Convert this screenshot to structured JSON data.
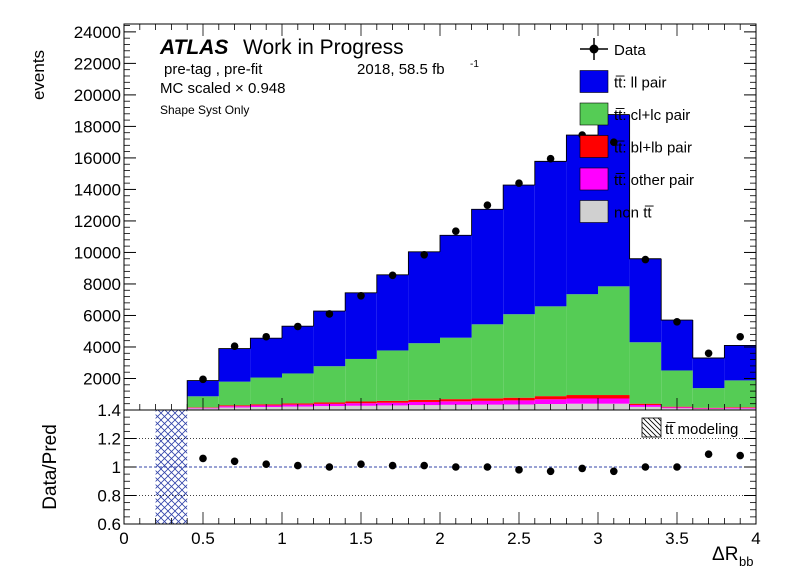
{
  "atlas": {
    "label": "ATLAS",
    "status": "Work in Progress",
    "selection": "pre-tag ,  pre-fit",
    "lumi": "2018, 58.5 fb",
    "lumi_sup": "-1",
    "mc_scale": "MC scaled × 0.948",
    "syst_note": "Shape Syst Only"
  },
  "chart_data": [
    {
      "type": "bar",
      "stacked": true,
      "ylabel": "events",
      "xlim": [
        0,
        4
      ],
      "ylim": [
        0,
        24500
      ],
      "yticks": [
        2000,
        4000,
        6000,
        8000,
        10000,
        12000,
        14000,
        16000,
        18000,
        20000,
        22000,
        24000
      ],
      "bin_edges": [
        0.0,
        0.2,
        0.4,
        0.6,
        0.8,
        1.0,
        1.2,
        1.4,
        1.6,
        1.8,
        2.0,
        2.2,
        2.4,
        2.6,
        2.8,
        3.0,
        3.2,
        3.4,
        3.6,
        3.8,
        4.0
      ],
      "series": [
        {
          "name": "non t̅t̅",
          "label": "non tt",
          "color": "#d0d0d0",
          "values": [
            0,
            0,
            100,
            160,
            190,
            220,
            250,
            270,
            290,
            310,
            330,
            340,
            350,
            380,
            400,
            400,
            200,
            110,
            70,
            90
          ]
        },
        {
          "name": "tt̅: other pair",
          "label": "tt: other pair",
          "color": "#ff00ff",
          "values": [
            0,
            0,
            40,
            80,
            100,
            120,
            140,
            160,
            170,
            200,
            220,
            240,
            260,
            300,
            330,
            330,
            120,
            60,
            40,
            50
          ]
        },
        {
          "name": "tt̅: bl+lb pair",
          "label": "tt: bl+lb pair",
          "color": "#ff0000",
          "values": [
            0,
            0,
            30,
            60,
            70,
            80,
            90,
            110,
            120,
            130,
            140,
            160,
            170,
            200,
            220,
            220,
            80,
            40,
            30,
            40
          ]
        },
        {
          "name": "tt̅: cl+lc pair",
          "label": "tt: cl+lc pair",
          "color": "#55cc55",
          "values": [
            0,
            0,
            700,
            1500,
            1700,
            1900,
            2300,
            2700,
            3200,
            3600,
            3900,
            4700,
            5300,
            5700,
            6400,
            6900,
            3900,
            2300,
            1250,
            1700
          ]
        },
        {
          "name": "tt̅: ll pair",
          "label": "tt: ll pair",
          "color": "#0000ee",
          "values": [
            0,
            0,
            1000,
            2100,
            2500,
            3000,
            3500,
            4200,
            4800,
            5800,
            6500,
            7300,
            8200,
            9200,
            10100,
            10900,
            5300,
            3200,
            1910,
            2220
          ]
        }
      ],
      "data": {
        "name": "Data",
        "x": [
          0.5,
          0.7,
          0.9,
          1.1,
          1.3,
          1.5,
          1.7,
          1.9,
          2.1,
          2.3,
          2.5,
          2.7,
          2.9,
          3.1,
          3.3,
          3.5,
          3.7,
          3.9
        ],
        "y": [
          1950,
          4050,
          4650,
          5300,
          6100,
          7250,
          8550,
          9850,
          11350,
          13000,
          14400,
          15950,
          17450,
          17000,
          9550,
          5600,
          3600,
          4650
        ]
      },
      "legend": {
        "position": "top-right",
        "entries": [
          {
            "label": "Data",
            "color": "#000000",
            "kind": "marker"
          },
          {
            "label": "tt̅: ll pair",
            "color": "#0000ee",
            "kind": "box"
          },
          {
            "label": "tt̅: cl+lc pair",
            "color": "#55cc55",
            "kind": "box"
          },
          {
            "label": "tt̅: bl+lb pair",
            "color": "#ff0000",
            "kind": "box"
          },
          {
            "label": "tt̅: other pair",
            "color": "#ff00ff",
            "kind": "box"
          },
          {
            "label": "non tt̅",
            "color": "#d0d0d0",
            "kind": "box"
          }
        ]
      }
    },
    {
      "type": "scatter",
      "ylabel": "Data/Pred",
      "xlabel": "ΔR",
      "xlabel_sub": "bb",
      "xlim": [
        0,
        4
      ],
      "ylim": [
        0.6,
        1.4
      ],
      "yticks": [
        0.6,
        0.8,
        1,
        1.2,
        1.4
      ],
      "xticks": [
        0,
        0.5,
        1,
        1.5,
        2,
        2.5,
        3,
        3.5,
        4
      ],
      "ytick_labels": [
        "0.6",
        "0.8",
        "1",
        "1.2",
        "1.4"
      ],
      "xtick_labels": [
        "0",
        "0.5",
        "1",
        "1.5",
        "2",
        "2.5",
        "3",
        "3.5",
        "4"
      ],
      "gridlines_y": [
        0.8,
        1.2
      ],
      "ratio": {
        "x": [
          0.5,
          0.7,
          0.9,
          1.1,
          1.3,
          1.5,
          1.7,
          1.9,
          2.1,
          2.3,
          2.5,
          2.7,
          2.9,
          3.1,
          3.3,
          3.5,
          3.7,
          3.9
        ],
        "y": [
          1.06,
          1.04,
          1.02,
          1.01,
          1.0,
          1.02,
          1.01,
          1.01,
          1.0,
          1.0,
          0.98,
          0.97,
          0.99,
          0.97,
          1.0,
          1.0,
          1.09,
          1.08
        ]
      },
      "band": {
        "label": "tt̅ modeling",
        "x_range": [
          0.2,
          0.4
        ],
        "y_range": [
          0.6,
          1.4
        ]
      }
    }
  ]
}
